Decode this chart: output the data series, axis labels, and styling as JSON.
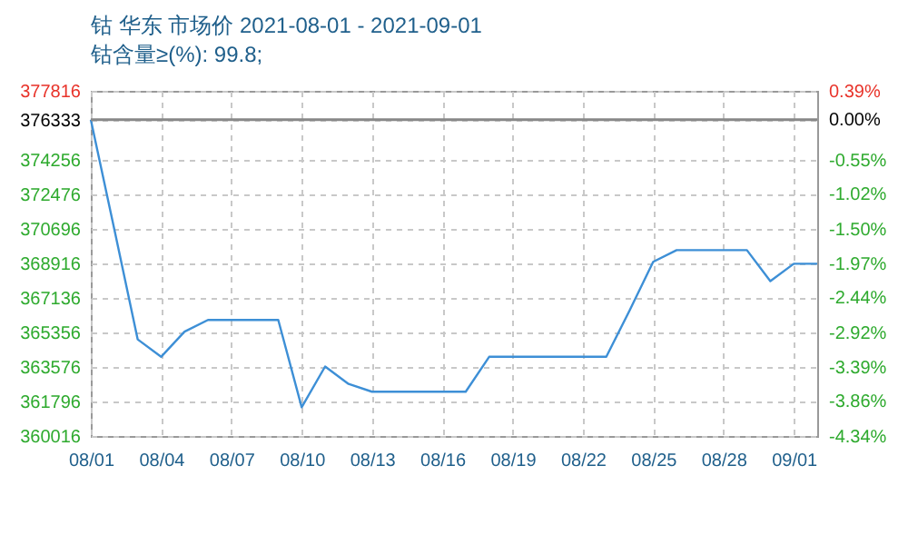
{
  "chart_data": {
    "type": "line",
    "title": "钴 华东 市场价 2021-08-01 - 2021-09-01",
    "subtitle": "钴含量≥(%): 99.8;",
    "categories": [
      "08/01",
      null,
      null,
      "08/04",
      null,
      null,
      "08/07",
      null,
      null,
      "08/10",
      null,
      null,
      "08/13",
      null,
      null,
      "08/16",
      null,
      null,
      "08/19",
      null,
      null,
      "08/22",
      null,
      null,
      "08/25",
      null,
      null,
      "08/28",
      null,
      null,
      "09/01",
      null
    ],
    "series": [
      {
        "color": "#3d8fd6",
        "values": [
          376333,
          370700,
          365000,
          364100,
          365400,
          366000,
          366000,
          366000,
          366000,
          361500,
          363600,
          362700,
          362300,
          362300,
          362300,
          362300,
          362300,
          364100,
          364100,
          364100,
          364100,
          364100,
          364100,
          366500,
          369000,
          369600,
          369600,
          369600,
          369600,
          368000,
          368900,
          368900
        ]
      }
    ],
    "ylim": [
      360016,
      377816
    ],
    "yticks": [
      360016,
      361796,
      363576,
      365356,
      367136,
      368916,
      370696,
      372476,
      374256,
      376333,
      377816
    ],
    "y2lim": [
      -4.34,
      0.39
    ],
    "y2ticks": [
      {
        "value": -4.34,
        "label": "-4.34%"
      },
      {
        "value": -3.86,
        "label": "-3.86%"
      },
      {
        "value": -3.39,
        "label": "-3.39%"
      },
      {
        "value": -2.92,
        "label": "-2.92%"
      },
      {
        "value": -2.44,
        "label": "-2.44%"
      },
      {
        "value": -1.97,
        "label": "-1.97%"
      },
      {
        "value": -1.5,
        "label": "-1.50%"
      },
      {
        "value": -1.02,
        "label": "-1.02%"
      },
      {
        "value": -0.55,
        "label": "-0.55%"
      },
      {
        "value": 0.0,
        "label": "0.00%"
      },
      {
        "value": 0.39,
        "label": "0.39%"
      }
    ],
    "ref_lines": [
      {
        "axis": "y",
        "value": 376333,
        "color": "#888888"
      }
    ],
    "grid": true
  }
}
